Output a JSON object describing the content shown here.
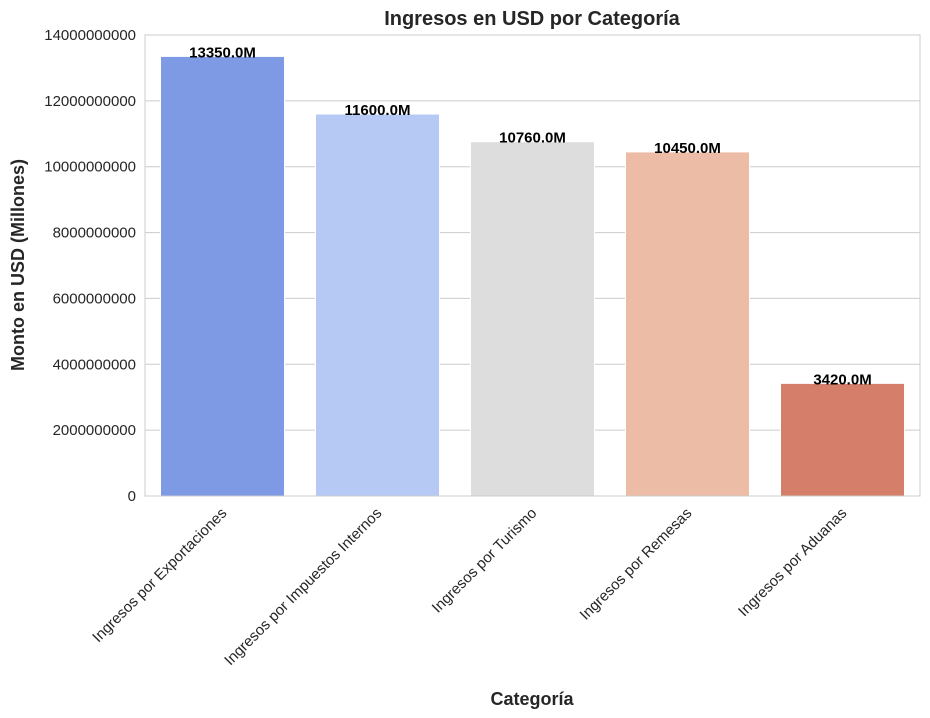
{
  "chart_data": {
    "type": "bar",
    "title": "Ingresos en USD por Categoría",
    "xlabel": "Categoría",
    "ylabel": "Monto en USD (Millones)",
    "categories": [
      "Ingresos por Exportaciones",
      "Ingresos por Impuestos Internos",
      "Ingresos por Turismo",
      "Ingresos por Remesas",
      "Ingresos por Aduanas"
    ],
    "values": [
      13350000000,
      11600000000,
      10760000000,
      10450000000,
      3420000000
    ],
    "value_labels": [
      "13350.0M",
      "11600.0M",
      "10760.0M",
      "10450.0M",
      "3420.0M"
    ],
    "ylim": [
      0,
      14000000000
    ],
    "yticks": [
      0,
      2000000000,
      4000000000,
      6000000000,
      8000000000,
      10000000000,
      12000000000,
      14000000000
    ],
    "ytick_labels": [
      "0",
      "2000000000",
      "4000000000",
      "6000000000",
      "8000000000",
      "10000000000",
      "12000000000",
      "14000000000"
    ],
    "colors": [
      "#7f9ae4",
      "#b5c9f4",
      "#dddddd",
      "#edbca6",
      "#d57f6a"
    ],
    "grid": "horizontal",
    "legend": "none"
  }
}
